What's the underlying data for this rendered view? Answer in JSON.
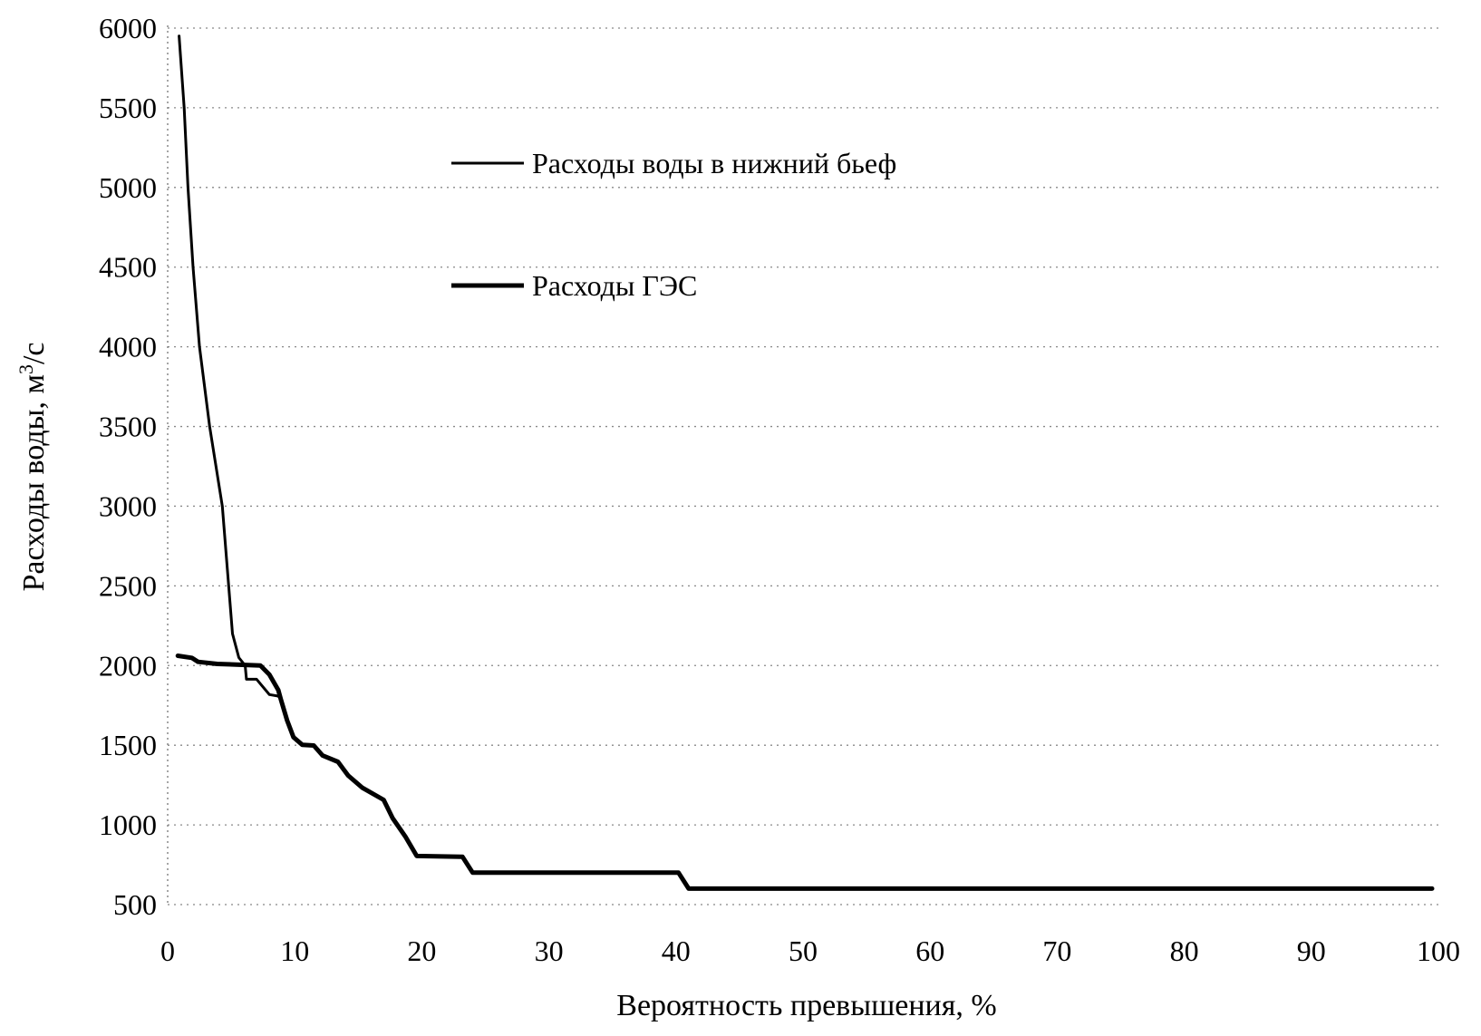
{
  "chart_data": {
    "type": "line",
    "title": "",
    "xlabel": "Вероятность превышения, %",
    "ylabel_main": "Расходы воды, м",
    "ylabel_sup": "3",
    "ylabel_tail": "/с",
    "xlim": [
      0,
      100
    ],
    "ylim": [
      500,
      6000
    ],
    "xticks": [
      0,
      10,
      20,
      30,
      40,
      50,
      60,
      70,
      80,
      90,
      100
    ],
    "yticks": [
      500,
      1000,
      1500,
      2000,
      2500,
      3000,
      3500,
      4000,
      4500,
      5000,
      5500,
      6000
    ],
    "grid": "horizontal dotted",
    "legend_placement": "upper-left inside plot",
    "series": [
      {
        "name": "Расходы воды в нижний бьеф",
        "color": "#000000",
        "x": [
          0.9,
          1.3,
          1.6,
          2.0,
          2.5,
          3.3,
          4.3,
          4.7,
          5.1,
          5.6,
          6.1,
          6.2,
          7.0,
          8.0,
          8.7,
          8.9,
          9.4,
          9.9,
          10.6,
          11.5,
          12.2,
          13.4,
          14.2,
          15.3,
          17.0,
          17.7,
          18.7,
          19.6,
          23.2,
          24.0,
          40.2,
          41.0,
          99.5
        ],
        "y": [
          5950,
          5500,
          5000,
          4500,
          4000,
          3500,
          3000,
          2600,
          2200,
          2050,
          2000,
          1914,
          1914,
          1818,
          1808,
          1789,
          1655,
          1550,
          1502,
          1498,
          1435,
          1396,
          1310,
          1234,
          1157,
          1042,
          927,
          805,
          800,
          700,
          700,
          600,
          600
        ]
      },
      {
        "name": "Расходы ГЭС",
        "color": "#000000",
        "x": [
          0.8,
          1.9,
          2.4,
          3.9,
          6.1,
          7.3,
          8.0,
          8.7,
          8.9,
          9.4,
          9.9,
          10.6,
          11.5,
          12.2,
          13.4,
          14.2,
          15.3,
          17.0,
          17.7,
          18.7,
          19.6,
          23.2,
          24.0,
          40.2,
          41.0,
          99.5
        ],
        "y": [
          2061,
          2048,
          2023,
          2010,
          2004,
          2000,
          1943,
          1847,
          1789,
          1655,
          1550,
          1502,
          1498,
          1435,
          1396,
          1310,
          1234,
          1157,
          1042,
          927,
          805,
          800,
          700,
          700,
          600,
          600
        ]
      }
    ]
  }
}
